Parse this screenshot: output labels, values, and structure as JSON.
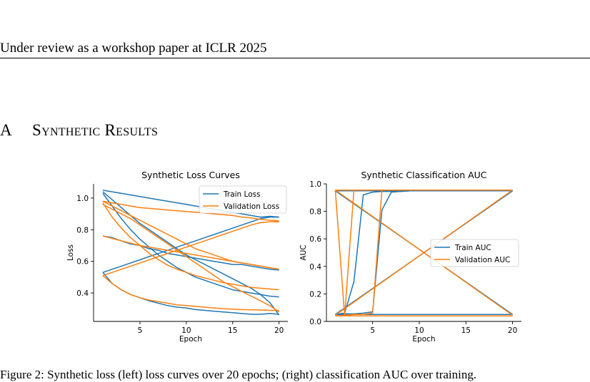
{
  "page": {
    "header": "Under review as a workshop paper at ICLR 2025",
    "section_number": "A",
    "section_title": "Synthetic Results",
    "caption": "Figure 2: Synthetic loss (left) loss curves over 20 epochs; (right) classification AUC over training."
  },
  "colors": {
    "train": "#1f77b4",
    "validation": "#ff7f0e",
    "axis": "#000000"
  },
  "chart_data": [
    {
      "type": "line",
      "title": "Synthetic Loss Curves",
      "xlabel": "Epoch",
      "ylabel": "Loss",
      "xlim": [
        0,
        20.95
      ],
      "ylim": [
        0.22,
        1.09
      ],
      "xticks": [
        5,
        10,
        15,
        20
      ],
      "yticks": [
        0.4,
        0.6,
        0.8,
        1.0
      ],
      "ytick_labels": [
        "0.4",
        "0.6",
        "0.8",
        "1.0"
      ],
      "grid": false,
      "legend_position": "upper-right",
      "legend": [
        "Train Loss",
        "Validation Loss"
      ],
      "series": [
        {
          "name": "Train Loss",
          "color_key": "train",
          "x": [
            1,
            2,
            3,
            4,
            5,
            6,
            7,
            8,
            9,
            10,
            11,
            12,
            13,
            14,
            15,
            16,
            17,
            18,
            19,
            20
          ],
          "y": [
            1.05,
            1.04,
            1.03,
            1.02,
            1.01,
            1.0,
            0.99,
            0.98,
            0.97,
            0.96,
            0.95,
            0.94,
            0.93,
            0.92,
            0.91,
            0.9,
            0.89,
            0.88,
            0.885,
            0.88
          ]
        },
        {
          "name": "Train Loss",
          "color_key": "train",
          "x": [
            1,
            2,
            3,
            4,
            5,
            6,
            7,
            8,
            9,
            10,
            11,
            12,
            13,
            14,
            15,
            16,
            17,
            18,
            19,
            20
          ],
          "y": [
            1.04,
            0.99,
            0.94,
            0.89,
            0.84,
            0.8,
            0.76,
            0.72,
            0.68,
            0.64,
            0.61,
            0.58,
            0.55,
            0.52,
            0.49,
            0.46,
            0.43,
            0.39,
            0.34,
            0.26
          ]
        },
        {
          "name": "Train Loss",
          "color_key": "train",
          "x": [
            1,
            2,
            3,
            4,
            5,
            6,
            7,
            8,
            9,
            10,
            11,
            12,
            13,
            14,
            15,
            16,
            17,
            18,
            19,
            20
          ],
          "y": [
            1.03,
            0.95,
            0.87,
            0.8,
            0.74,
            0.69,
            0.64,
            0.6,
            0.56,
            0.53,
            0.5,
            0.48,
            0.46,
            0.44,
            0.42,
            0.41,
            0.4,
            0.39,
            0.38,
            0.375
          ]
        },
        {
          "name": "Train Loss",
          "color_key": "train",
          "x": [
            1,
            2,
            3,
            4,
            5,
            6,
            7,
            8,
            9,
            10,
            11,
            12,
            13,
            14,
            15,
            16,
            17,
            18,
            19,
            20
          ],
          "y": [
            0.76,
            0.75,
            0.73,
            0.71,
            0.7,
            0.68,
            0.67,
            0.65,
            0.64,
            0.63,
            0.62,
            0.61,
            0.6,
            0.59,
            0.58,
            0.58,
            0.57,
            0.56,
            0.55,
            0.545
          ]
        },
        {
          "name": "Train Loss",
          "color_key": "train",
          "x": [
            1,
            2,
            3,
            4,
            5,
            6,
            7,
            8,
            9,
            10,
            11,
            12,
            13,
            14,
            15,
            16,
            17,
            18,
            19,
            20
          ],
          "y": [
            0.53,
            0.55,
            0.57,
            0.59,
            0.61,
            0.63,
            0.65,
            0.67,
            0.69,
            0.71,
            0.73,
            0.75,
            0.77,
            0.79,
            0.81,
            0.83,
            0.85,
            0.87,
            0.88,
            0.88
          ]
        },
        {
          "name": "Train Loss",
          "color_key": "train",
          "x": [
            1,
            2,
            3,
            4,
            5,
            6,
            7,
            8,
            9,
            10,
            11,
            12,
            13,
            14,
            15,
            16,
            17,
            18,
            19,
            20
          ],
          "y": [
            0.53,
            0.46,
            0.42,
            0.39,
            0.37,
            0.35,
            0.335,
            0.32,
            0.31,
            0.305,
            0.295,
            0.29,
            0.285,
            0.28,
            0.275,
            0.27,
            0.265,
            0.265,
            0.27,
            0.265
          ]
        },
        {
          "name": "Validation Loss",
          "color_key": "validation",
          "x": [
            1,
            2,
            3,
            4,
            5,
            6,
            7,
            8,
            9,
            10,
            11,
            12,
            13,
            14,
            15,
            16,
            17,
            18,
            19,
            20
          ],
          "y": [
            0.98,
            0.97,
            0.96,
            0.95,
            0.94,
            0.935,
            0.93,
            0.925,
            0.92,
            0.915,
            0.91,
            0.905,
            0.9,
            0.895,
            0.89,
            0.88,
            0.875,
            0.865,
            0.86,
            0.855
          ]
        },
        {
          "name": "Validation Loss",
          "color_key": "validation",
          "x": [
            1,
            2,
            3,
            4,
            5,
            6,
            7,
            8,
            9,
            10,
            11,
            12,
            13,
            14,
            15,
            16,
            17,
            18,
            19,
            20
          ],
          "y": [
            0.98,
            0.95,
            0.92,
            0.89,
            0.86,
            0.83,
            0.8,
            0.77,
            0.74,
            0.71,
            0.68,
            0.66,
            0.64,
            0.62,
            0.6,
            0.59,
            0.58,
            0.57,
            0.56,
            0.55
          ]
        },
        {
          "name": "Validation Loss",
          "color_key": "validation",
          "x": [
            1,
            2,
            3,
            4,
            5,
            6,
            7,
            8,
            9,
            10,
            11,
            12,
            13,
            14,
            15,
            16,
            17,
            18,
            19,
            20
          ],
          "y": [
            0.97,
            0.88,
            0.81,
            0.75,
            0.7,
            0.65,
            0.61,
            0.575,
            0.55,
            0.53,
            0.51,
            0.495,
            0.48,
            0.465,
            0.455,
            0.445,
            0.435,
            0.43,
            0.425,
            0.42
          ]
        },
        {
          "name": "Validation Loss",
          "color_key": "validation",
          "x": [
            1,
            2,
            3,
            4,
            5,
            6,
            7,
            8,
            9,
            10,
            11,
            12,
            13,
            14,
            15,
            16,
            17,
            18,
            19,
            20
          ],
          "y": [
            0.96,
            0.93,
            0.9,
            0.87,
            0.83,
            0.79,
            0.75,
            0.71,
            0.67,
            0.63,
            0.59,
            0.55,
            0.51,
            0.47,
            0.44,
            0.41,
            0.38,
            0.35,
            0.32,
            0.28
          ]
        },
        {
          "name": "Validation Loss",
          "color_key": "validation",
          "x": [
            1,
            2,
            3,
            4,
            5,
            6,
            7,
            8,
            9,
            10,
            11,
            12,
            13,
            14,
            15,
            16,
            17,
            18,
            19,
            20
          ],
          "y": [
            0.76,
            0.745,
            0.73,
            0.715,
            0.7,
            0.69,
            0.68,
            0.67,
            0.66,
            0.65,
            0.64,
            0.63,
            0.62,
            0.61,
            0.6,
            0.59,
            0.58,
            0.57,
            0.56,
            0.55
          ]
        },
        {
          "name": "Validation Loss",
          "color_key": "validation",
          "x": [
            1,
            2,
            3,
            4,
            5,
            6,
            7,
            8,
            9,
            10,
            11,
            12,
            13,
            14,
            15,
            16,
            17,
            18,
            19,
            20
          ],
          "y": [
            0.51,
            0.53,
            0.55,
            0.57,
            0.59,
            0.61,
            0.63,
            0.65,
            0.67,
            0.69,
            0.71,
            0.73,
            0.75,
            0.77,
            0.79,
            0.81,
            0.83,
            0.845,
            0.85,
            0.85
          ]
        },
        {
          "name": "Validation Loss",
          "color_key": "validation",
          "x": [
            1,
            2,
            3,
            4,
            5,
            6,
            7,
            8,
            9,
            10,
            11,
            12,
            13,
            14,
            15,
            16,
            17,
            18,
            19,
            20
          ],
          "y": [
            0.51,
            0.46,
            0.42,
            0.39,
            0.37,
            0.355,
            0.345,
            0.335,
            0.325,
            0.32,
            0.315,
            0.31,
            0.305,
            0.3,
            0.298,
            0.295,
            0.293,
            0.292,
            0.29,
            0.29
          ]
        }
      ]
    },
    {
      "type": "line",
      "title": "Synthetic Classification AUC",
      "xlabel": "Epoch",
      "ylabel": "AUC",
      "xlim": [
        0.05,
        20.95
      ],
      "ylim": [
        0,
        1.0
      ],
      "xticks": [
        5,
        10,
        15,
        20
      ],
      "yticks": [
        0.0,
        0.2,
        0.4,
        0.6,
        0.8,
        1.0
      ],
      "ytick_labels": [
        "0.0",
        "0.2",
        "0.4",
        "0.6",
        "0.8",
        "1.0"
      ],
      "grid": false,
      "legend_position": "center-right",
      "legend": [
        "Train AUC",
        "Validation AUC"
      ],
      "series": [
        {
          "name": "Train AUC",
          "color_key": "train",
          "x": [
            1,
            20
          ],
          "y": [
            0.95,
            0.95
          ]
        },
        {
          "name": "Train AUC",
          "color_key": "train",
          "x": [
            1,
            20
          ],
          "y": [
            0.05,
            0.05
          ]
        },
        {
          "name": "Train AUC",
          "color_key": "train",
          "x": [
            1,
            20
          ],
          "y": [
            0.95,
            0.05
          ]
        },
        {
          "name": "Train AUC",
          "color_key": "train",
          "x": [
            1,
            20
          ],
          "y": [
            0.05,
            0.95
          ]
        },
        {
          "name": "Train AUC",
          "color_key": "train",
          "x": [
            1,
            2,
            3,
            4,
            5,
            6,
            7,
            8,
            9,
            10,
            20
          ],
          "y": [
            0.05,
            0.06,
            0.29,
            0.92,
            0.94,
            0.945,
            0.945,
            0.945,
            0.95,
            0.95,
            0.95
          ]
        },
        {
          "name": "Train AUC",
          "color_key": "train",
          "x": [
            1,
            2,
            3,
            4,
            5,
            6,
            7,
            8,
            9,
            10,
            20
          ],
          "y": [
            0.05,
            0.055,
            0.055,
            0.06,
            0.07,
            0.81,
            0.94,
            0.945,
            0.95,
            0.95,
            0.95
          ]
        },
        {
          "name": "Validation AUC",
          "color_key": "validation",
          "x": [
            1,
            20
          ],
          "y": [
            0.955,
            0.955
          ]
        },
        {
          "name": "Validation AUC",
          "color_key": "validation",
          "x": [
            1,
            20
          ],
          "y": [
            0.04,
            0.04
          ]
        },
        {
          "name": "Validation AUC",
          "color_key": "validation",
          "x": [
            1,
            20
          ],
          "y": [
            0.955,
            0.045
          ]
        },
        {
          "name": "Validation AUC",
          "color_key": "validation",
          "x": [
            1,
            20
          ],
          "y": [
            0.045,
            0.955
          ]
        },
        {
          "name": "Validation AUC",
          "color_key": "validation",
          "x": [
            1,
            2,
            3,
            4,
            20
          ],
          "y": [
            0.955,
            0.04,
            0.955,
            0.955,
            0.955
          ]
        },
        {
          "name": "Validation AUC",
          "color_key": "validation",
          "x": [
            1,
            2,
            3,
            4,
            5,
            6,
            7,
            20
          ],
          "y": [
            0.04,
            0.045,
            0.05,
            0.05,
            0.06,
            0.955,
            0.955,
            0.955
          ]
        }
      ]
    }
  ]
}
